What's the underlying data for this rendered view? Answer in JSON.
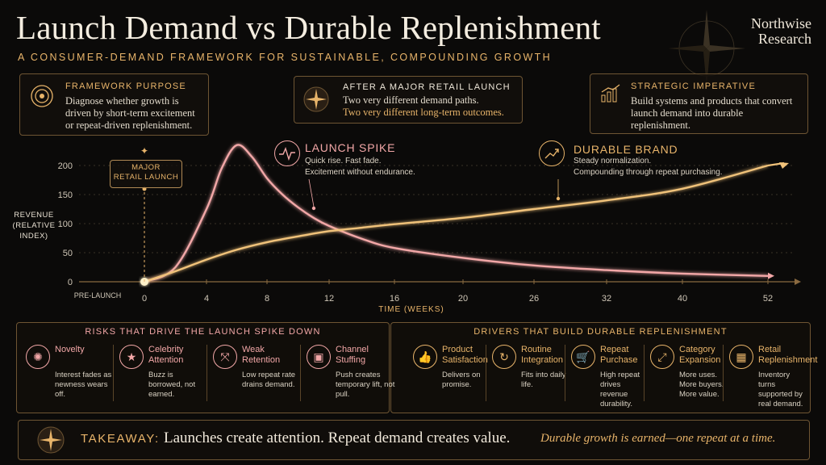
{
  "header": {
    "title": "Launch Demand vs Durable Replenishment",
    "subtitle": "A CONSUMER-DEMAND FRAMEWORK FOR SUSTAINABLE, COMPOUNDING GROWTH",
    "brand_line1": "Northwise",
    "brand_line2": "Research"
  },
  "cards": {
    "purpose": {
      "head": "FRAMEWORK PURPOSE",
      "body": "Diagnose whether growth is driven by short-term excitement or repeat-driven replenishment."
    },
    "launch": {
      "head": "AFTER A MAJOR RETAIL LAUNCH",
      "line1": "Two very different demand paths.",
      "line2": "Two very different long-term outcomes."
    },
    "imperative": {
      "head": "STRATEGIC IMPERATIVE",
      "body": "Build systems and products that convert launch demand into durable replenishment."
    }
  },
  "annotations": {
    "major_launch": [
      "MAJOR",
      "RETAIL LAUNCH"
    ],
    "spike_title": "LAUNCH SPIKE",
    "spike_desc1": "Quick rise. Fast fade.",
    "spike_desc2": "Excitement without endurance.",
    "durable_title": "DURABLE BRAND",
    "durable_desc1": "Steady normalization.",
    "durable_desc2": "Compounding through repeat purchasing."
  },
  "chart_data": {
    "type": "line",
    "ylabel": [
      "REVENUE",
      "(RELATIVE",
      "INDEX)"
    ],
    "xlabel": "TIME (WEEKS)",
    "x_ticks": [
      "0",
      "4",
      "8",
      "12",
      "16",
      "20",
      "26",
      "32",
      "40",
      "52"
    ],
    "x_ticks_values": [
      0,
      4,
      8,
      12,
      16,
      20,
      26,
      32,
      40,
      52
    ],
    "x_pre_label": "PRE-LAUNCH",
    "y_ticks": [
      0,
      50,
      100,
      150,
      200
    ],
    "ylim": [
      0,
      200
    ],
    "series": [
      {
        "color": "#f2a7a7",
        "x": [
          0,
          2,
          4,
          5,
          6,
          7,
          8,
          9,
          10,
          11,
          12,
          14,
          16,
          20,
          26,
          32,
          40,
          52
        ],
        "values": [
          0,
          25,
          125,
          195,
          235,
          215,
          178,
          150,
          128,
          110,
          96,
          74,
          58,
          41,
          28,
          20,
          14,
          10
        ]
      },
      {
        "color": "#f0c27a",
        "x": [
          0,
          2,
          4,
          6,
          8,
          10,
          12,
          14,
          16,
          20,
          26,
          32,
          40,
          52
        ],
        "values": [
          0,
          18,
          38,
          55,
          68,
          78,
          87,
          93,
          99,
          110,
          125,
          140,
          160,
          200
        ]
      }
    ]
  },
  "risks": {
    "title": "RISKS THAT DRIVE THE LAUNCH SPIKE DOWN",
    "items": [
      {
        "icon": "sparkle-icon",
        "title": "Novelty",
        "desc": "Interest fades as newness wears off."
      },
      {
        "icon": "star-person-icon",
        "title": "Celebrity Attention",
        "desc": "Buzz is borrowed, not earned."
      },
      {
        "icon": "broken-link-icon",
        "title": "Weak Retention",
        "desc": "Low repeat rate drains demand."
      },
      {
        "icon": "box-icon",
        "title": "Channel Stuffing",
        "desc": "Push creates temporary lift, not pull."
      }
    ]
  },
  "drivers": {
    "title": "DRIVERS THAT BUILD DURABLE REPLENISHMENT",
    "items": [
      {
        "icon": "thumbs-up-icon",
        "title": "Product Satisfaction",
        "desc": "Delivers on promise."
      },
      {
        "icon": "cycle-icon",
        "title": "Routine Integration",
        "desc": "Fits into daily life."
      },
      {
        "icon": "cart-icon",
        "title": "Repeat Purchase",
        "desc": "High repeat drives revenue durability."
      },
      {
        "icon": "expand-icon",
        "title": "Category Expansion",
        "desc": "More uses. More buyers. More value."
      },
      {
        "icon": "store-icon",
        "title": "Retail Replenishment",
        "desc": "Inventory turns supported by real demand."
      }
    ]
  },
  "takeaway": {
    "label": "TAKEAWAY:",
    "main": "Launches create attention. Repeat demand creates value.",
    "emphasis": "Durable growth is earned—one repeat at a time."
  }
}
